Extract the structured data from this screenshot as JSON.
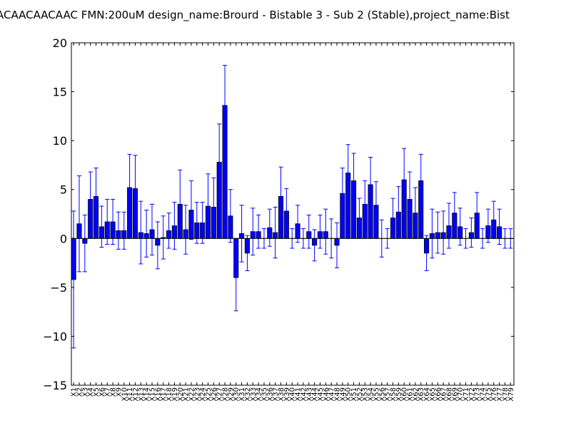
{
  "chart_data": {
    "type": "bar",
    "title": "ACAACAACAAC  FMN:200uM  design_name:Brourd - Bistable 3 - Sub 2 (Stable),project_name:Bist",
    "xlabel": "",
    "ylabel": "",
    "ylim": [
      -15,
      20
    ],
    "yticks": [
      -15,
      -10,
      -5,
      0,
      5,
      10,
      15,
      20
    ],
    "ytick_labels": [
      "−15",
      "−10",
      "−5",
      "0",
      "5",
      "10",
      "15",
      "20"
    ],
    "grid": false,
    "bar_color": "#0000ff",
    "categories": [
      "X1",
      "X2",
      "X3",
      "X4",
      "X5",
      "X6",
      "X7",
      "X8",
      "X9",
      "X10",
      "X11",
      "X12",
      "X13",
      "X14",
      "X15",
      "X16",
      "X17",
      "X18",
      "X19",
      "X20",
      "X21",
      "X22",
      "X23",
      "X24",
      "X25",
      "X26",
      "X27",
      "X28",
      "X29",
      "X30",
      "X31",
      "X32",
      "X33",
      "X34",
      "X35",
      "X36",
      "X37",
      "X38",
      "X39",
      "X40",
      "X41",
      "X42",
      "X43",
      "X44",
      "X45",
      "X46",
      "X47",
      "X48",
      "X49",
      "X50",
      "X51",
      "X52",
      "X53",
      "X54",
      "X55",
      "X56",
      "X57",
      "X58",
      "X59",
      "X60",
      "X61",
      "X62",
      "X63",
      "X64",
      "X65",
      "X66",
      "X67",
      "X68",
      "X69",
      "X70",
      "X71",
      "X72",
      "X73",
      "X74",
      "X75",
      "X76",
      "X77",
      "X78",
      "X79"
    ],
    "values": [
      -4.2,
      1.5,
      -0.5,
      4.0,
      4.3,
      1.2,
      1.7,
      1.7,
      0.8,
      0.8,
      5.2,
      5.1,
      0.6,
      0.5,
      0.9,
      -0.7,
      0.1,
      0.8,
      1.3,
      3.5,
      0.9,
      2.9,
      1.6,
      1.6,
      3.3,
      3.2,
      7.8,
      13.6,
      2.3,
      -4.0,
      0.5,
      -1.5,
      0.7,
      0.7,
      0.0,
      1.1,
      0.6,
      4.3,
      2.8,
      0.0,
      1.5,
      0.0,
      0.7,
      -0.7,
      0.7,
      0.7,
      0.0,
      -0.7,
      4.6,
      6.7,
      5.9,
      2.1,
      3.5,
      5.5,
      3.4,
      0.0,
      0.0,
      2.1,
      2.7,
      6.0,
      4.0,
      2.6,
      5.9,
      -1.5,
      0.5,
      0.6,
      0.6,
      1.3,
      2.6,
      1.2,
      0.0,
      0.6,
      2.6,
      0.0,
      1.3,
      1.9,
      1.2,
      0.0,
      0.0
    ],
    "errors": [
      7.0,
      4.9,
      2.9,
      2.8,
      2.9,
      2.1,
      2.3,
      2.3,
      1.9,
      1.9,
      3.4,
      3.4,
      3.2,
      2.4,
      2.6,
      2.4,
      2.2,
      1.8,
      2.4,
      3.5,
      2.5,
      3.0,
      2.1,
      2.1,
      3.3,
      3.0,
      3.9,
      4.1,
      2.7,
      3.4,
      2.9,
      1.8,
      2.4,
      1.7,
      1.0,
      1.9,
      2.6,
      3.0,
      2.3,
      1.0,
      1.9,
      1.0,
      1.7,
      1.6,
      1.7,
      2.3,
      2.0,
      2.3,
      2.6,
      2.9,
      2.8,
      2.0,
      2.4,
      2.8,
      2.4,
      1.9,
      1.0,
      2.0,
      2.6,
      3.2,
      2.8,
      2.6,
      2.7,
      1.8,
      2.5,
      2.1,
      2.2,
      2.3,
      2.1,
      1.9,
      1.0,
      1.5,
      2.1,
      1.0,
      1.7,
      1.9,
      1.8,
      1.0,
      1.0
    ]
  }
}
